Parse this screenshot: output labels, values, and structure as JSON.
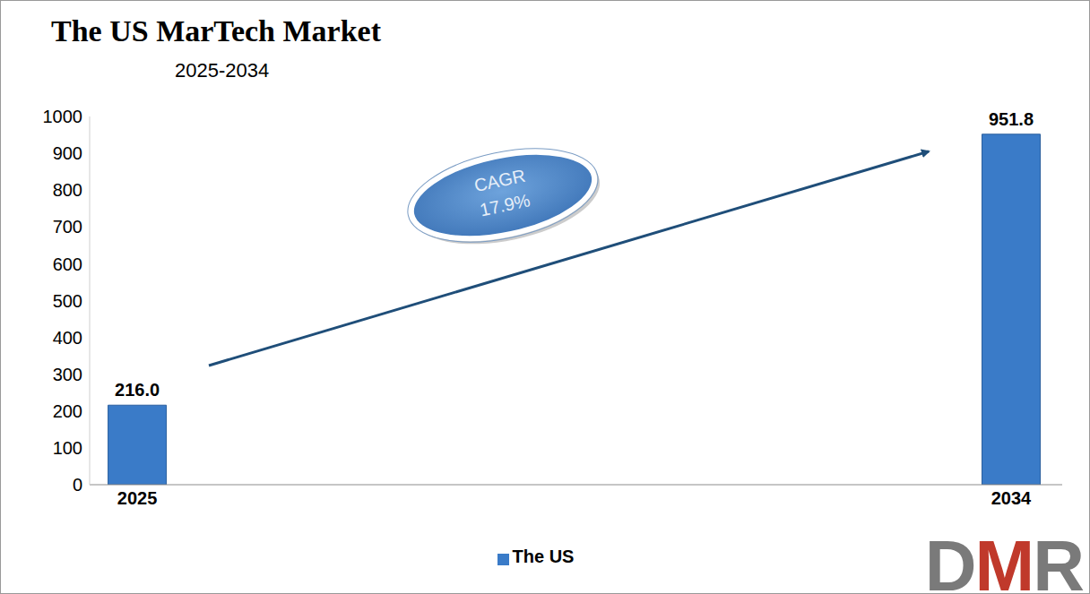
{
  "chart_data": {
    "type": "bar",
    "title": "The US MarTech Market",
    "subtitle": "2025-2034",
    "categories": [
      "2025",
      "2034"
    ],
    "series": [
      {
        "name": "The US",
        "color": "#3a7bc8",
        "values": [
          216.0,
          951.8
        ],
        "value_labels": [
          "216.0",
          "951.8"
        ]
      }
    ],
    "ylim": [
      0,
      1000
    ],
    "yticks": [
      0,
      100,
      200,
      300,
      400,
      500,
      600,
      700,
      800,
      900,
      1000
    ],
    "grid": false,
    "legend": "bottom",
    "data_labels": true,
    "annotations": [
      {
        "text": "CAGR 17.9%"
      }
    ],
    "logo": "DMR"
  }
}
